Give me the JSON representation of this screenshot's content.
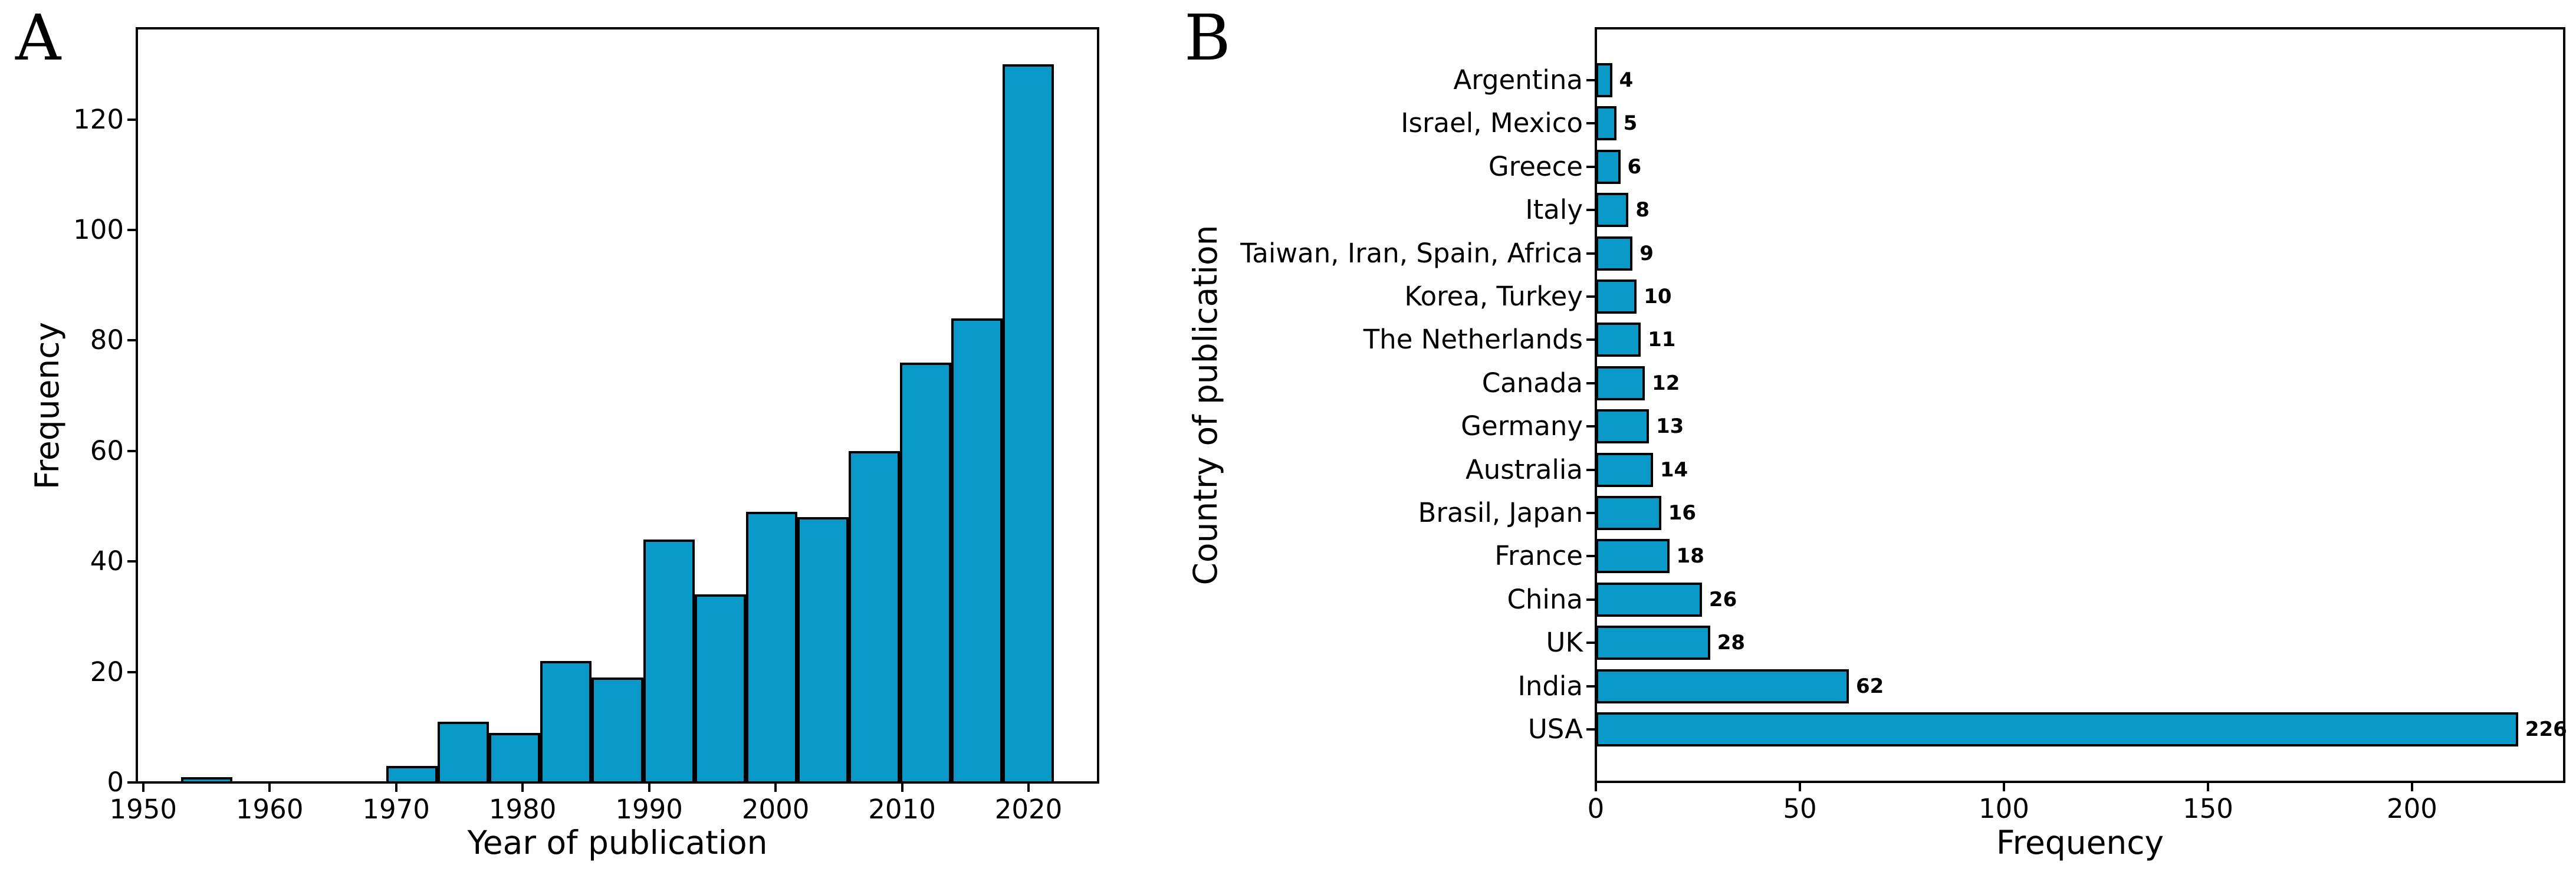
{
  "figure": {
    "background": "#ffffff",
    "bar_fill": "#0999c9",
    "bar_edge": "#000000",
    "text_color": "#000000"
  },
  "panels": {
    "a": {
      "letter": "A",
      "xlabel": "Year of publication",
      "ylabel": "Frequency"
    },
    "b": {
      "letter": "B",
      "xlabel": "Frequency",
      "ylabel": "Country of publication"
    }
  },
  "chart_data": [
    {
      "type": "bar",
      "subtype": "histogram",
      "panel": "A",
      "title": "",
      "xlabel": "Year of publication",
      "ylabel": "Frequency",
      "bin_start": 1953,
      "bin_end": 2022,
      "bin_count": 17,
      "bin_width": 4.0588,
      "counts": [
        1,
        0,
        0,
        0,
        3,
        11,
        9,
        22,
        19,
        44,
        34,
        49,
        48,
        60,
        76,
        84,
        130
      ],
      "xticks": [
        1950,
        1960,
        1970,
        1980,
        1990,
        2000,
        2010,
        2020
      ],
      "yticks": [
        0,
        20,
        40,
        60,
        80,
        100,
        120
      ],
      "xlim": [
        1949.5,
        2025.5
      ],
      "ylim": [
        0,
        136.5
      ],
      "grid": false,
      "bar_color": "#0999c9"
    },
    {
      "type": "bar",
      "orientation": "horizontal",
      "panel": "B",
      "title": "",
      "xlabel": "Frequency",
      "ylabel": "Country of publication",
      "categories_top_to_bottom": [
        "Argentina",
        "Israel, Mexico",
        "Greece",
        "Italy",
        "Taiwan, Iran, Spain, Africa",
        "Korea, Turkey",
        "The Netherlands",
        "Canada",
        "Germany",
        "Australia",
        "Brasil, Japan",
        "France",
        "China",
        "UK",
        "India",
        "USA"
      ],
      "values": [
        4,
        5,
        6,
        8,
        9,
        10,
        11,
        12,
        13,
        14,
        16,
        18,
        26,
        28,
        62,
        226
      ],
      "value_labels": [
        "4",
        "5",
        "6",
        "8",
        "9",
        "10",
        "11",
        "12",
        "13",
        "14",
        "16",
        "18",
        "26",
        "28",
        "62",
        "226"
      ],
      "xticks": [
        0,
        50,
        100,
        150,
        200
      ],
      "xlim": [
        0,
        237.3
      ],
      "grid": false,
      "bar_color": "#0999c9"
    }
  ]
}
